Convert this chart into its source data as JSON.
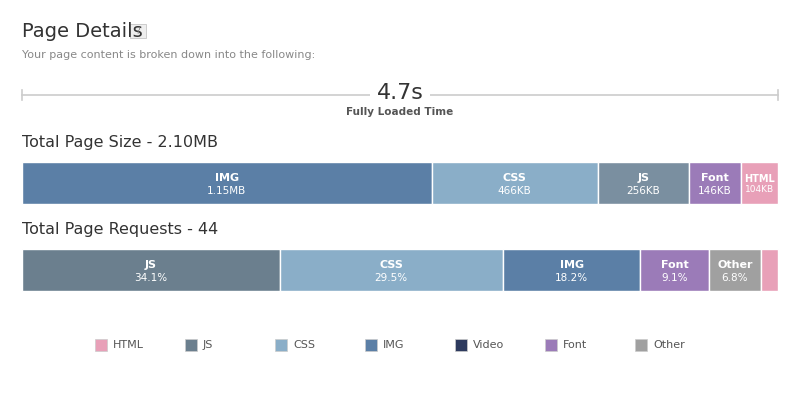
{
  "title": "Page Details",
  "subtitle": "Your page content is broken down into the following:",
  "loaded_time": "4.7s",
  "loaded_label": "Fully Loaded Time",
  "size_title": "Total Page Size - 2.10MB",
  "requests_title": "Total Page Requests - 44",
  "size_segments": [
    {
      "label": "IMG",
      "sublabel": "1.15MB",
      "value": 1150,
      "color": "#5b7fa6"
    },
    {
      "label": "CSS",
      "sublabel": "466KB",
      "value": 466,
      "color": "#8aaec8"
    },
    {
      "label": "JS",
      "sublabel": "256KB",
      "value": 256,
      "color": "#7a8fa0"
    },
    {
      "label": "Font",
      "sublabel": "146KB",
      "value": 146,
      "color": "#9b7bb8"
    },
    {
      "label": "HTML",
      "sublabel": "104KB",
      "value": 104,
      "color": "#e8a0b8"
    }
  ],
  "req_segments": [
    {
      "label": "JS",
      "sublabel": "34.1%",
      "value": 34.1,
      "color": "#6b7f8e"
    },
    {
      "label": "CSS",
      "sublabel": "29.5%",
      "value": 29.5,
      "color": "#8aaec8"
    },
    {
      "label": "IMG",
      "sublabel": "18.2%",
      "value": 18.2,
      "color": "#5b7fa6"
    },
    {
      "label": "Font",
      "sublabel": "9.1%",
      "value": 9.1,
      "color": "#9b7bb8"
    },
    {
      "label": "Other",
      "sublabel": "6.8%",
      "value": 6.8,
      "color": "#a0a0a0"
    },
    {
      "label": "",
      "sublabel": "",
      "value": 2.3,
      "color": "#e8a0b8"
    }
  ],
  "legend": [
    {
      "label": "HTML",
      "color": "#e8a0b8"
    },
    {
      "label": "JS",
      "color": "#6b7f8e"
    },
    {
      "label": "CSS",
      "color": "#8aaec8"
    },
    {
      "label": "IMG",
      "color": "#5b7fa6"
    },
    {
      "label": "Video",
      "color": "#2d3a5e"
    },
    {
      "label": "Font",
      "color": "#9b7bb8"
    },
    {
      "label": "Other",
      "color": "#a0a0a0"
    }
  ],
  "bg_color": "#ffffff",
  "text_color": "#333333",
  "border_color": "#e0e0e0"
}
